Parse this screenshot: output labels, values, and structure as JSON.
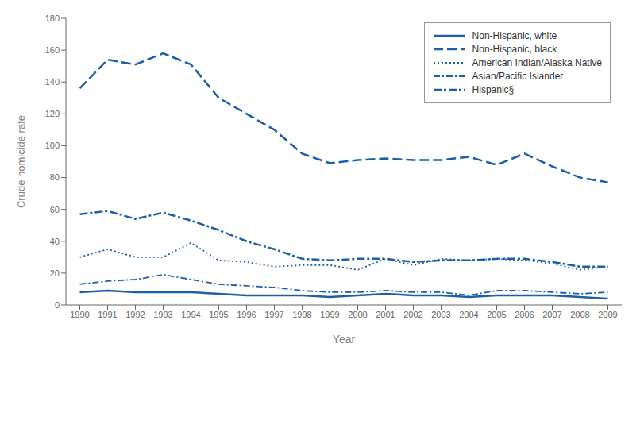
{
  "chart_data": {
    "type": "line",
    "xlabel": "Year",
    "ylabel": "Crude homicide rate",
    "x": [
      1990,
      1991,
      1992,
      1993,
      1994,
      1995,
      1996,
      1997,
      1998,
      1999,
      2000,
      2001,
      2002,
      2003,
      2004,
      2005,
      2006,
      2007,
      2008,
      2009
    ],
    "series": [
      {
        "name": "Non-Hispanic, white",
        "color": "#1a5fa8",
        "line_style": "solid",
        "values": [
          8,
          9,
          8,
          8,
          8,
          7,
          6,
          6,
          6,
          5,
          6,
          7,
          6,
          6,
          5,
          6,
          6,
          6,
          5,
          4
        ]
      },
      {
        "name": "Non-Hispanic, black",
        "color": "#1a5fa8",
        "line_style": "dashed",
        "values": [
          136,
          154,
          151,
          158,
          151,
          130,
          120,
          110,
          95,
          89,
          91,
          92,
          91,
          91,
          93,
          88,
          95,
          87,
          80,
          77
        ]
      },
      {
        "name": "American Indian/Alaska Native",
        "color": "#1a5fa8",
        "line_style": "dotted",
        "values": [
          30,
          35,
          30,
          30,
          39,
          28,
          27,
          24,
          25,
          25,
          22,
          29,
          25,
          29,
          28,
          29,
          28,
          26,
          22,
          24
        ]
      },
      {
        "name": "Asian/Pacific Islander",
        "color": "#1a5fa8",
        "line_style": "dashdot",
        "values": [
          13,
          15,
          16,
          19,
          16,
          13,
          12,
          11,
          9,
          8,
          8,
          9,
          8,
          8,
          6,
          9,
          9,
          8,
          7,
          8
        ]
      },
      {
        "name": "Hispanic§",
        "color": "#1a5fa8",
        "line_style": "dashdash",
        "values": [
          57,
          59,
          54,
          58,
          53,
          47,
          40,
          35,
          29,
          28,
          29,
          29,
          27,
          28,
          28,
          29,
          29,
          27,
          24,
          24
        ]
      }
    ],
    "xlim": [
      1989.5,
      2009.5
    ],
    "xticks": [
      1990,
      1991,
      1992,
      1993,
      1994,
      1995,
      1996,
      1997,
      1998,
      1999,
      2000,
      2001,
      2002,
      2003,
      2004,
      2005,
      2006,
      2007,
      2008,
      2009
    ],
    "ylim": [
      0,
      180
    ],
    "yticks": [
      0,
      20,
      40,
      60,
      80,
      100,
      120,
      140,
      160,
      180
    ],
    "grid": false,
    "legend": "upper right"
  }
}
